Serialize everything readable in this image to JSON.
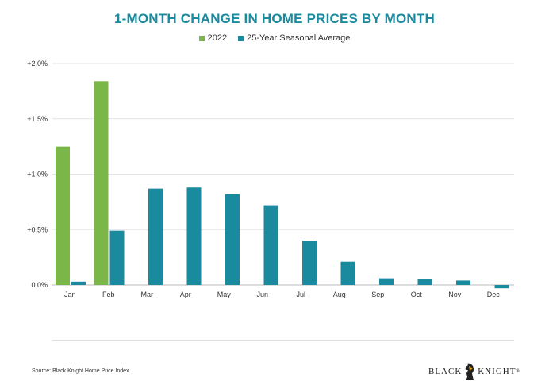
{
  "chart_data": {
    "type": "bar",
    "title": "1-MONTH CHANGE IN HOME PRICES BY MONTH",
    "categories": [
      "Jan",
      "Feb",
      "Mar",
      "Apr",
      "May",
      "Jun",
      "Jul",
      "Aug",
      "Sep",
      "Oct",
      "Nov",
      "Dec"
    ],
    "series": [
      {
        "name": "2022",
        "color": "#7ab648",
        "values": [
          1.25,
          1.84,
          null,
          null,
          null,
          null,
          null,
          null,
          null,
          null,
          null,
          null
        ]
      },
      {
        "name": "25-Year Seasonal Average",
        "color": "#1a8a9e",
        "values": [
          0.03,
          0.49,
          0.87,
          0.88,
          0.82,
          0.72,
          0.4,
          0.21,
          0.06,
          0.05,
          0.04,
          -0.03
        ]
      }
    ],
    "yticks": [
      "+2.0%",
      "+1.5%",
      "+1.0%",
      "+0.5%",
      "0.0%"
    ],
    "ytick_values": [
      2.0,
      1.5,
      1.0,
      0.5,
      0.0
    ],
    "ylim": [
      -0.1,
      2.0
    ],
    "xlabel": "",
    "ylabel": "",
    "grid": true,
    "legend_position": "top-center"
  },
  "source": "Source: Black Knight Home Price Index",
  "logo": {
    "left": "BLACK",
    "right": "KNIGHT",
    "trademark": "®"
  }
}
